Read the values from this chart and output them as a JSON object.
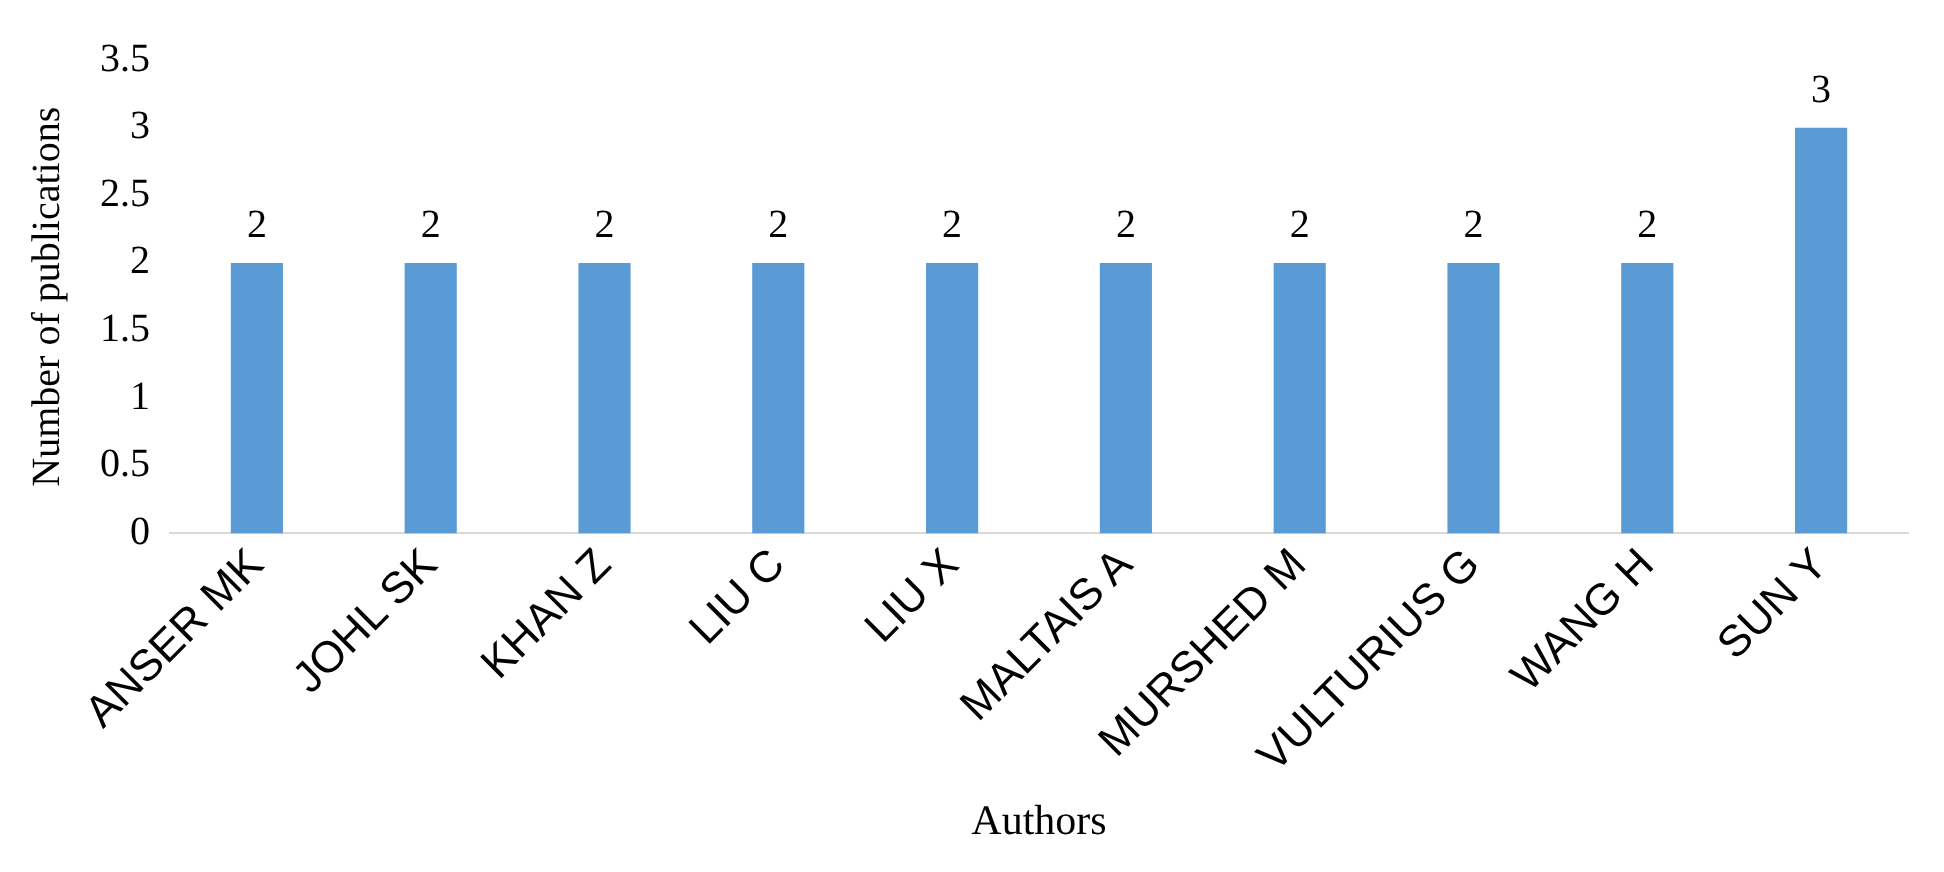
{
  "chart_data": {
    "type": "bar",
    "xlabel": "Authors",
    "ylabel": "Number of publications",
    "categories": [
      "ANSER MK",
      "JOHL SK",
      "KHAN Z",
      "LIU C",
      "LIU X",
      "MALTAIS A",
      "MURSHED M",
      "VULTURIUS G",
      "WANG H",
      "SUN Y"
    ],
    "values": [
      2,
      2,
      2,
      2,
      2,
      2,
      2,
      2,
      2,
      3
    ],
    "color": "#5b9bd5",
    "ylim": [
      0,
      3.5
    ],
    "yticks": [
      0,
      0.5,
      1,
      1.5,
      2,
      2.5,
      3,
      3.5
    ],
    "grid": false,
    "legend": false,
    "data_labels": true
  }
}
